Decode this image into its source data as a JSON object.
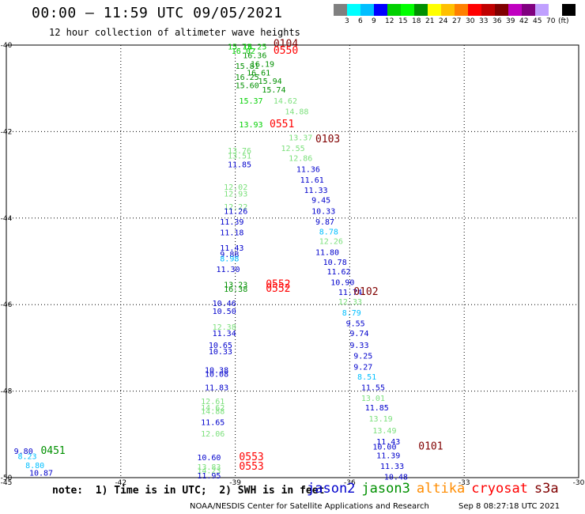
{
  "header": {
    "title": "00:00 – 11:59 UTC 09/05/2021",
    "subtitle": "12 hour collection of altimeter wave heights"
  },
  "colorbar": {
    "colors": [
      "#808080",
      "#00ffff",
      "#00bfff",
      "#0000ff",
      "#00d000",
      "#00ff00",
      "#009000",
      "#ffff00",
      "#ffc000",
      "#ff8000",
      "#ff0000",
      "#c00000",
      "#800000",
      "#c000c0",
      "#800080",
      "#c0a0ff",
      "#ffffff",
      "#000000"
    ],
    "labels": [
      "3",
      "6",
      "9",
      "12",
      "15",
      "18",
      "21",
      "24",
      "27",
      "30",
      "33",
      "36",
      "39",
      "42",
      "45",
      "70"
    ],
    "unit": "(ft)"
  },
  "satellite_colors": {
    "jason2": "#0000cc",
    "jason3": "#009000",
    "altika": "#ff8c00",
    "cryosat": "#ff0000",
    "s3a": "#800000"
  },
  "chart_data": {
    "type": "scatter",
    "xlim": [
      -45,
      -30
    ],
    "ylim": [
      -50,
      -40
    ],
    "x_ticks": [
      "-45",
      "-42",
      "-39",
      "-36",
      "-33",
      "-30"
    ],
    "y_ticks": [
      "-40",
      "-42",
      "-44",
      "-46",
      "-48",
      "-50"
    ],
    "points": [
      {
        "lon": -39.2,
        "lat": -40.1,
        "text": "15.73",
        "color": "#00d000"
      },
      {
        "lon": -38.8,
        "lat": -40.1,
        "text": "16.25",
        "color": "#00d000"
      },
      {
        "lon": -39.1,
        "lat": -40.2,
        "text": "16.02",
        "color": "#00d000"
      },
      {
        "lon": -38.8,
        "lat": -40.3,
        "text": "16.36",
        "color": "#009000"
      },
      {
        "lon": -38.0,
        "lat": -40.05,
        "text": "0104",
        "color": "#800000"
      },
      {
        "lon": -38.0,
        "lat": -40.2,
        "text": "0550",
        "color": "#ff0000"
      },
      {
        "lon": -38.6,
        "lat": -40.5,
        "text": "16.19",
        "color": "#009000"
      },
      {
        "lon": -39.0,
        "lat": -40.55,
        "text": "15.81",
        "color": "#009000"
      },
      {
        "lon": -38.7,
        "lat": -40.7,
        "text": "16.61",
        "color": "#009000"
      },
      {
        "lon": -39.0,
        "lat": -40.8,
        "text": "16.25",
        "color": "#009000"
      },
      {
        "lon": -38.4,
        "lat": -40.9,
        "text": "15.94",
        "color": "#009000"
      },
      {
        "lon": -39.0,
        "lat": -41.0,
        "text": "15.60",
        "color": "#009000"
      },
      {
        "lon": -38.3,
        "lat": -41.1,
        "text": "15.74",
        "color": "#009000"
      },
      {
        "lon": -38.9,
        "lat": -41.35,
        "text": "15.37",
        "color": "#00d000"
      },
      {
        "lon": -38.0,
        "lat": -41.35,
        "text": "14.62",
        "color": "#7ce07c"
      },
      {
        "lon": -37.7,
        "lat": -41.6,
        "text": "14.88",
        "color": "#7ce07c"
      },
      {
        "lon": -38.9,
        "lat": -41.9,
        "text": "13.93",
        "color": "#00d000"
      },
      {
        "lon": -38.1,
        "lat": -41.9,
        "text": "0551",
        "color": "#ff0000"
      },
      {
        "lon": -37.6,
        "lat": -42.2,
        "text": "13.37",
        "color": "#7ce07c"
      },
      {
        "lon": -36.9,
        "lat": -42.25,
        "text": "0103",
        "color": "#800000"
      },
      {
        "lon": -37.8,
        "lat": -42.45,
        "text": "12.55",
        "color": "#7ce07c"
      },
      {
        "lon": -39.2,
        "lat": -42.5,
        "text": "13.76",
        "color": "#7ce07c"
      },
      {
        "lon": -39.2,
        "lat": -42.62,
        "text": "13.51",
        "color": "#7ce07c"
      },
      {
        "lon": -37.6,
        "lat": -42.68,
        "text": "12.86",
        "color": "#7ce07c"
      },
      {
        "lon": -39.2,
        "lat": -42.82,
        "text": "11.85",
        "color": "#0000cc"
      },
      {
        "lon": -37.4,
        "lat": -42.93,
        "text": "11.36",
        "color": "#0000cc"
      },
      {
        "lon": -37.3,
        "lat": -43.18,
        "text": "11.61",
        "color": "#0000cc"
      },
      {
        "lon": -39.3,
        "lat": -43.35,
        "text": "12.02",
        "color": "#7ce07c"
      },
      {
        "lon": -37.2,
        "lat": -43.42,
        "text": "11.33",
        "color": "#0000cc"
      },
      {
        "lon": -39.3,
        "lat": -43.5,
        "text": "12.93",
        "color": "#7ce07c"
      },
      {
        "lon": -37.0,
        "lat": -43.65,
        "text": "9.45",
        "color": "#0000cc"
      },
      {
        "lon": -39.3,
        "lat": -43.8,
        "text": "12.22",
        "color": "#7ce07c"
      },
      {
        "lon": -39.3,
        "lat": -43.9,
        "text": "11.26",
        "color": "#0000cc"
      },
      {
        "lon": -37.0,
        "lat": -43.9,
        "text": "10.33",
        "color": "#0000cc"
      },
      {
        "lon": -36.9,
        "lat": -44.15,
        "text": "9.87",
        "color": "#0000cc"
      },
      {
        "lon": -39.4,
        "lat": -44.15,
        "text": "11.39",
        "color": "#0000cc"
      },
      {
        "lon": -39.4,
        "lat": -44.4,
        "text": "11.18",
        "color": "#0000cc"
      },
      {
        "lon": -36.8,
        "lat": -44.38,
        "text": "8.78",
        "color": "#00bfff"
      },
      {
        "lon": -36.8,
        "lat": -44.6,
        "text": "12.26",
        "color": "#7ce07c"
      },
      {
        "lon": -39.4,
        "lat": -44.75,
        "text": "11.43",
        "color": "#0000cc"
      },
      {
        "lon": -36.9,
        "lat": -44.85,
        "text": "11.80",
        "color": "#0000cc"
      },
      {
        "lon": -39.4,
        "lat": -44.9,
        "text": "9.88",
        "color": "#0000cc"
      },
      {
        "lon": -39.4,
        "lat": -45.0,
        "text": "8.98",
        "color": "#00bfff"
      },
      {
        "lon": -36.7,
        "lat": -45.08,
        "text": "10.78",
        "color": "#0000cc"
      },
      {
        "lon": -39.5,
        "lat": -45.25,
        "text": "11.30",
        "color": "#0000cc"
      },
      {
        "lon": -36.6,
        "lat": -45.3,
        "text": "11.62",
        "color": "#0000cc"
      },
      {
        "lon": -36.5,
        "lat": -45.55,
        "text": "10.90",
        "color": "#0000cc"
      },
      {
        "lon": -39.3,
        "lat": -45.6,
        "text": "13.23",
        "color": "#009000"
      },
      {
        "lon": -38.2,
        "lat": -45.6,
        "text": "0552",
        "color": "#ff0000"
      },
      {
        "lon": -39.3,
        "lat": -45.7,
        "text": "16.38",
        "color": "#009000"
      },
      {
        "lon": -38.2,
        "lat": -45.7,
        "text": "0552",
        "color": "#ff0000"
      },
      {
        "lon": -36.3,
        "lat": -45.78,
        "text": "11.74",
        "color": "#0000cc"
      },
      {
        "lon": -35.9,
        "lat": -45.78,
        "text": "0102",
        "color": "#800000"
      },
      {
        "lon": -36.3,
        "lat": -46.0,
        "text": "12.33",
        "color": "#7ce07c"
      },
      {
        "lon": -39.6,
        "lat": -46.03,
        "text": "10.46",
        "color": "#0000cc"
      },
      {
        "lon": -36.2,
        "lat": -46.25,
        "text": "8.79",
        "color": "#00bfff"
      },
      {
        "lon": -39.6,
        "lat": -46.22,
        "text": "10.50",
        "color": "#0000cc"
      },
      {
        "lon": -36.1,
        "lat": -46.5,
        "text": "9.55",
        "color": "#0000cc"
      },
      {
        "lon": -39.6,
        "lat": -46.58,
        "text": "12.38",
        "color": "#7ce07c"
      },
      {
        "lon": -36.0,
        "lat": -46.73,
        "text": "9.74",
        "color": "#0000cc"
      },
      {
        "lon": -39.6,
        "lat": -46.73,
        "text": "11.34",
        "color": "#0000cc"
      },
      {
        "lon": -36.0,
        "lat": -47.0,
        "text": "9.33",
        "color": "#0000cc"
      },
      {
        "lon": -39.7,
        "lat": -47.0,
        "text": "10.65",
        "color": "#0000cc"
      },
      {
        "lon": -39.7,
        "lat": -47.15,
        "text": "10.33",
        "color": "#0000cc"
      },
      {
        "lon": -35.9,
        "lat": -47.25,
        "text": "9.25",
        "color": "#0000cc"
      },
      {
        "lon": -35.9,
        "lat": -47.5,
        "text": "9.27",
        "color": "#0000cc"
      },
      {
        "lon": -39.8,
        "lat": -47.58,
        "text": "10.38",
        "color": "#0000cc"
      },
      {
        "lon": -39.8,
        "lat": -47.67,
        "text": "10.08",
        "color": "#0000cc"
      },
      {
        "lon": -35.8,
        "lat": -47.73,
        "text": "8.51",
        "color": "#00bfff"
      },
      {
        "lon": -39.8,
        "lat": -47.98,
        "text": "11.83",
        "color": "#0000cc"
      },
      {
        "lon": -35.7,
        "lat": -47.98,
        "text": "11.55",
        "color": "#0000cc"
      },
      {
        "lon": -35.7,
        "lat": -48.23,
        "text": "13.01",
        "color": "#7ce07c"
      },
      {
        "lon": -39.9,
        "lat": -48.3,
        "text": "12.61",
        "color": "#7ce07c"
      },
      {
        "lon": -39.9,
        "lat": -48.45,
        "text": "14.62",
        "color": "#7ce07c"
      },
      {
        "lon": -35.6,
        "lat": -48.45,
        "text": "11.85",
        "color": "#0000cc"
      },
      {
        "lon": -39.9,
        "lat": -48.53,
        "text": "14.88",
        "color": "#7ce07c"
      },
      {
        "lon": -35.5,
        "lat": -48.7,
        "text": "13.19",
        "color": "#7ce07c"
      },
      {
        "lon": -39.9,
        "lat": -48.78,
        "text": "11.65",
        "color": "#0000cc"
      },
      {
        "lon": -35.4,
        "lat": -48.98,
        "text": "13.49",
        "color": "#7ce07c"
      },
      {
        "lon": -39.9,
        "lat": -49.05,
        "text": "12.06",
        "color": "#7ce07c"
      },
      {
        "lon": -35.3,
        "lat": -49.23,
        "text": "11.43",
        "color": "#0000cc"
      },
      {
        "lon": -35.4,
        "lat": -49.35,
        "text": "10.00",
        "color": "#0000cc"
      },
      {
        "lon": -34.2,
        "lat": -49.35,
        "text": "0101",
        "color": "#800000"
      },
      {
        "lon": -44.8,
        "lat": -49.45,
        "text": "9.80",
        "color": "#0000cc"
      },
      {
        "lon": -44.1,
        "lat": -49.45,
        "text": "0451",
        "color": "#009000"
      },
      {
        "lon": -35.3,
        "lat": -49.55,
        "text": "11.39",
        "color": "#0000cc"
      },
      {
        "lon": -44.7,
        "lat": -49.57,
        "text": "8.23",
        "color": "#00bfff"
      },
      {
        "lon": -40.0,
        "lat": -49.6,
        "text": "10.60",
        "color": "#0000cc"
      },
      {
        "lon": -38.9,
        "lat": -49.6,
        "text": "0553",
        "color": "#ff0000"
      },
      {
        "lon": -35.2,
        "lat": -49.8,
        "text": "11.33",
        "color": "#0000cc"
      },
      {
        "lon": -44.5,
        "lat": -49.78,
        "text": "8.80",
        "color": "#00bfff"
      },
      {
        "lon": -40.0,
        "lat": -49.82,
        "text": "13.83",
        "color": "#7ce07c"
      },
      {
        "lon": -40.0,
        "lat": -49.9,
        "text": "14.23",
        "color": "#7ce07c"
      },
      {
        "lon": -38.9,
        "lat": -49.82,
        "text": "0553",
        "color": "#ff0000"
      },
      {
        "lon": -44.4,
        "lat": -49.95,
        "text": "10.87",
        "color": "#0000cc"
      },
      {
        "lon": -40.0,
        "lat": -50.02,
        "text": "11.95",
        "color": "#0000cc"
      },
      {
        "lon": -35.1,
        "lat": -50.05,
        "text": "10.48",
        "color": "#0000cc"
      }
    ]
  },
  "note": "note:  1) Time is in UTC;  2) SWH is in feet",
  "legend": [
    {
      "label": "jason2",
      "color": "#0000cc"
    },
    {
      "label": "jason3",
      "color": "#009000"
    },
    {
      "label": "altika",
      "color": "#ff8c00"
    },
    {
      "label": "cryosat",
      "color": "#ff0000"
    },
    {
      "label": "s3a",
      "color": "#800000"
    }
  ],
  "footer": {
    "left": "NOAA/NESDIS Center for Satellite Applications and Research",
    "right": "Sep  8 08:27:18 UTC 2021"
  }
}
